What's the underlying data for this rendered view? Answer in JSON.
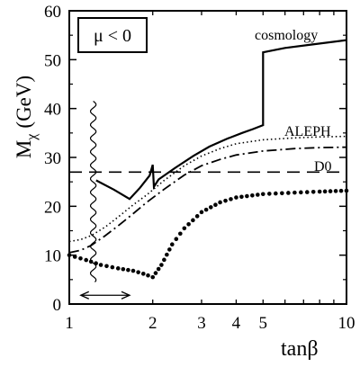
{
  "chart_data": {
    "type": "line",
    "xlabel": "tanβ",
    "ylabel": "M",
    "ylabel_sub": "χ",
    "ylabel_unit": "(GeV)",
    "x_scale": "log",
    "xlim": [
      1,
      10
    ],
    "ylim": [
      0,
      60
    ],
    "x_ticks": [
      1,
      2,
      3,
      4,
      5,
      10
    ],
    "x_tick_labels": [
      "1",
      "2",
      "3",
      "4",
      "5",
      "10"
    ],
    "y_ticks": [
      0,
      10,
      20,
      30,
      40,
      50,
      60
    ],
    "y_tick_labels": [
      "0",
      "10",
      "20",
      "30",
      "40",
      "50",
      "60"
    ],
    "legend_box": "μ < 0",
    "grid": false,
    "series": [
      {
        "name": "cosmology",
        "style": "solid",
        "x": [
          1.25,
          1.45,
          1.65,
          1.8,
          1.95,
          2.0,
          2.02,
          2.1,
          2.4,
          2.8,
          3.2,
          3.7,
          4.2,
          4.6,
          5.0,
          5.0,
          6.0,
          7.5,
          10.0
        ],
        "values": [
          25.3,
          23.4,
          21.5,
          23.8,
          26.3,
          28.5,
          24.0,
          25.5,
          27.8,
          30.3,
          32.2,
          33.8,
          35.0,
          35.8,
          36.6,
          51.5,
          52.4,
          53.1,
          54.0
        ]
      },
      {
        "name": "ALEPH",
        "style": "dotted",
        "x": [
          1.0,
          1.1,
          1.2,
          1.35,
          1.5,
          1.7,
          1.9,
          2.2,
          2.6,
          3.0,
          3.5,
          4.0,
          5.0,
          6.5,
          8.0,
          10.0
        ],
        "values": [
          12.8,
          13.2,
          14.0,
          15.8,
          17.8,
          20.3,
          22.3,
          25.3,
          28.3,
          30.3,
          31.8,
          32.8,
          33.6,
          34.0,
          34.2,
          34.3
        ]
      },
      {
        "name": "D0",
        "style": "dashed",
        "x": [
          1.0,
          10.0
        ],
        "values": [
          27,
          27
        ]
      },
      {
        "name": "",
        "style": "dashdot",
        "x": [
          1.0,
          1.1,
          1.2,
          1.35,
          1.5,
          1.7,
          1.9,
          2.2,
          2.6,
          3.0,
          3.5,
          4.0,
          5.0,
          6.5,
          8.0,
          10.0
        ],
        "values": [
          10.5,
          11.0,
          12.0,
          14.0,
          16.0,
          18.5,
          20.8,
          23.5,
          26.4,
          28.3,
          29.6,
          30.5,
          31.3,
          31.8,
          32.0,
          32.1
        ]
      },
      {
        "name": "",
        "style": "bigdots",
        "x": [
          1.0,
          1.15,
          1.3,
          1.5,
          1.7,
          1.85,
          2.0,
          2.15,
          2.35,
          2.6,
          3.0,
          3.5,
          4.0,
          5.0,
          6.5,
          8.0,
          10.0
        ],
        "values": [
          10.0,
          9.0,
          8.0,
          7.3,
          6.8,
          6.2,
          5.5,
          8.0,
          12.2,
          15.5,
          18.8,
          20.8,
          21.8,
          22.5,
          22.8,
          23.0,
          23.2
        ]
      }
    ],
    "annotations": [
      {
        "type": "wavy_vertical",
        "x": 1.22,
        "y_from": 4.5,
        "y_to": 41.5
      },
      {
        "type": "double_arrow",
        "x_from": 1.1,
        "x_to": 1.65,
        "y": 1.8
      }
    ]
  }
}
